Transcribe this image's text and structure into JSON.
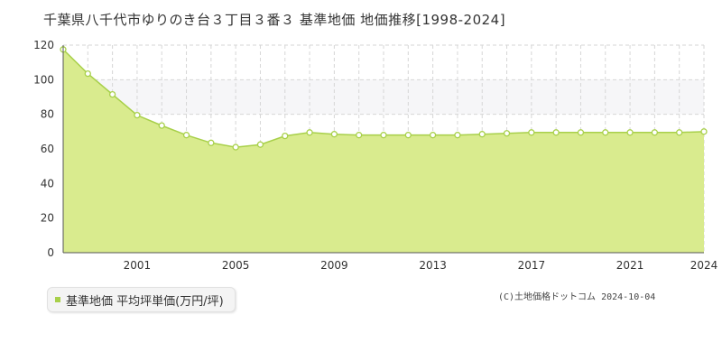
{
  "title": "千葉県八千代市ゆりのき台３丁目３番３ 基準地価 地価推移[1998-2024]",
  "legend_label": "基準地価 平均坪単価(万円/坪)",
  "copyright": "(C)土地価格ドットコム 2024-10-04",
  "colors": {
    "fill": "#d9eb8e",
    "line": "#a8d04a",
    "band": "#f6f6f8",
    "grid": "#d6d6d6",
    "axis": "#555555"
  },
  "chart_data": {
    "type": "area",
    "x": [
      1998,
      1999,
      2000,
      2001,
      2002,
      2003,
      2004,
      2005,
      2006,
      2007,
      2008,
      2009,
      2010,
      2011,
      2012,
      2013,
      2014,
      2015,
      2016,
      2017,
      2018,
      2019,
      2020,
      2021,
      2022,
      2023,
      2024
    ],
    "values": [
      117.5,
      103.5,
      91.5,
      79.5,
      73.5,
      68.0,
      63.5,
      61.0,
      62.5,
      67.5,
      69.5,
      68.5,
      68.0,
      68.0,
      68.0,
      68.0,
      68.0,
      68.5,
      69.0,
      69.5,
      69.5,
      69.5,
      69.5,
      69.5,
      69.5,
      69.5,
      70.0
    ],
    "xticks": [
      "2001",
      "2005",
      "2009",
      "2013",
      "2017",
      "2021",
      "2024"
    ],
    "xtick_values": [
      2001,
      2005,
      2009,
      2013,
      2017,
      2021,
      2024
    ],
    "yticks": [
      "0",
      "20",
      "40",
      "60",
      "80",
      "100",
      "120"
    ],
    "ylim": [
      0,
      120
    ],
    "xlim": [
      1998,
      2024
    ],
    "shaded_band": [
      80,
      100
    ],
    "grid": true
  }
}
